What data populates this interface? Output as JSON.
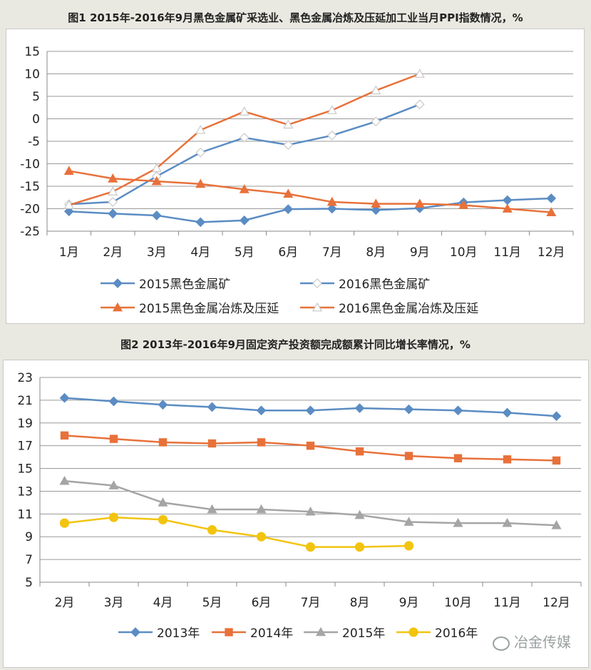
{
  "figures": [
    {
      "title": "图1 2015年-2016年9月黑色金属矿采选业、黑色金属冶炼及压延加工业当月PPI指数情况，%",
      "chart_data": {
        "type": "line",
        "categories": [
          "1月",
          "2月",
          "3月",
          "4月",
          "5月",
          "6月",
          "7月",
          "8月",
          "9月",
          "10月",
          "11月",
          "12月"
        ],
        "ylim": [
          -25,
          15
        ],
        "yticks": [
          15,
          10,
          5,
          0,
          -5,
          -10,
          -15,
          -20,
          -25
        ],
        "grid": true,
        "legend": "bottom",
        "series": [
          {
            "name": "2015黑色金属矿",
            "color": "#5b8cc3",
            "marker": "diamond",
            "hollow": false,
            "values": [
              -20.6,
              -21.1,
              -21.5,
              -23.0,
              -22.6,
              -20.1,
              -20.0,
              -20.3,
              -19.9,
              -18.6,
              -18.1,
              -17.7
            ]
          },
          {
            "name": "2016黑色金属矿",
            "color": "#5b8cc3",
            "marker": "diamond",
            "hollow": true,
            "values": [
              -19.0,
              -18.5,
              -12.8,
              -7.5,
              -4.2,
              -5.8,
              -3.7,
              -0.6,
              3.2,
              null,
              null,
              null
            ]
          },
          {
            "name": "2015黑色金属冶炼及压延",
            "color": "#e8713a",
            "marker": "triangle",
            "hollow": false,
            "values": [
              -11.6,
              -13.3,
              -13.9,
              -14.5,
              -15.7,
              -16.7,
              -18.5,
              -18.9,
              -18.9,
              -19.2,
              -20.0,
              -20.8
            ]
          },
          {
            "name": "2016黑色金属冶炼及压延",
            "color": "#e8713a",
            "marker": "triangle",
            "hollow": true,
            "values": [
              -19.2,
              -16.2,
              -11.0,
              -2.5,
              1.6,
              -1.3,
              1.9,
              6.3,
              10.0,
              null,
              null,
              null
            ]
          }
        ]
      }
    },
    {
      "title": "图2 2013年-2016年9月固定资产投资额完成额累计同比增长率情况，%",
      "chart_data": {
        "type": "line",
        "categories": [
          "2月",
          "3月",
          "4月",
          "5月",
          "6月",
          "7月",
          "8月",
          "9月",
          "10月",
          "11月",
          "12月"
        ],
        "ylim": [
          5,
          23
        ],
        "yticks": [
          23,
          21,
          19,
          17,
          15,
          13,
          11,
          9,
          7,
          5
        ],
        "grid": true,
        "legend": "bottom",
        "series": [
          {
            "name": "2013年",
            "color": "#5b8cc3",
            "marker": "diamond",
            "values": [
              21.2,
              20.9,
              20.6,
              20.4,
              20.1,
              20.1,
              20.3,
              20.2,
              20.1,
              19.9,
              19.6
            ]
          },
          {
            "name": "2014年",
            "color": "#e8713a",
            "marker": "square",
            "values": [
              17.9,
              17.6,
              17.3,
              17.2,
              17.3,
              17.0,
              16.5,
              16.1,
              15.9,
              15.8,
              15.7
            ]
          },
          {
            "name": "2015年",
            "color": "#a5a5a5",
            "marker": "triangle",
            "values": [
              13.9,
              13.5,
              12.0,
              11.4,
              11.4,
              11.2,
              10.9,
              10.3,
              10.2,
              10.2,
              10.0
            ]
          },
          {
            "name": "2016年",
            "color": "#f2c40f",
            "marker": "circle",
            "values": [
              10.2,
              10.7,
              10.5,
              9.6,
              9.0,
              8.1,
              8.1,
              8.2,
              null,
              null,
              null
            ]
          }
        ]
      }
    }
  ],
  "watermark": "冶金传媒"
}
